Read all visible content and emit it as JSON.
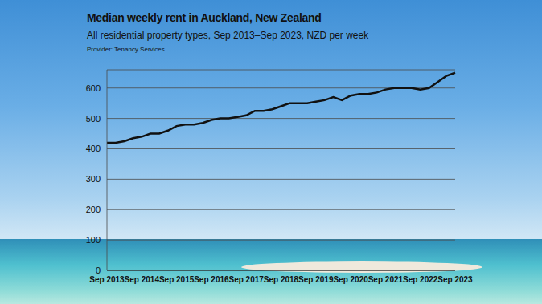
{
  "chart_data": {
    "type": "line",
    "title": "Median weekly rent in Auckland, New Zealand",
    "subtitle": "All residential property types, Sep 2013–Sep 2023, NZD per week",
    "source": "Provider: Tenancy Services",
    "categories": [
      "Sep 2013",
      null,
      null,
      null,
      "Sep 2014",
      null,
      null,
      null,
      "Sep 2015",
      null,
      null,
      null,
      "Sep 2016",
      null,
      null,
      null,
      "Sep 2017",
      null,
      null,
      null,
      "Sep 2018",
      null,
      null,
      null,
      "Sep 2019",
      null,
      null,
      null,
      "Sep 2020",
      null,
      null,
      null,
      "Sep 2021",
      null,
      null,
      null,
      "Sep 2022",
      null,
      null,
      null,
      "Sep 2023"
    ],
    "values": [
      420,
      420,
      425,
      435,
      440,
      450,
      450,
      460,
      475,
      480,
      480,
      485,
      495,
      500,
      500,
      505,
      510,
      525,
      525,
      530,
      540,
      550,
      550,
      550,
      555,
      560,
      570,
      560,
      575,
      580,
      580,
      585,
      595,
      600,
      600,
      600,
      595,
      600,
      620,
      640,
      650
    ],
    "color": "#111111",
    "ylim": [
      0,
      660
    ],
    "yticks": [
      0,
      100,
      200,
      300,
      400,
      500,
      600
    ],
    "grid": true
  }
}
